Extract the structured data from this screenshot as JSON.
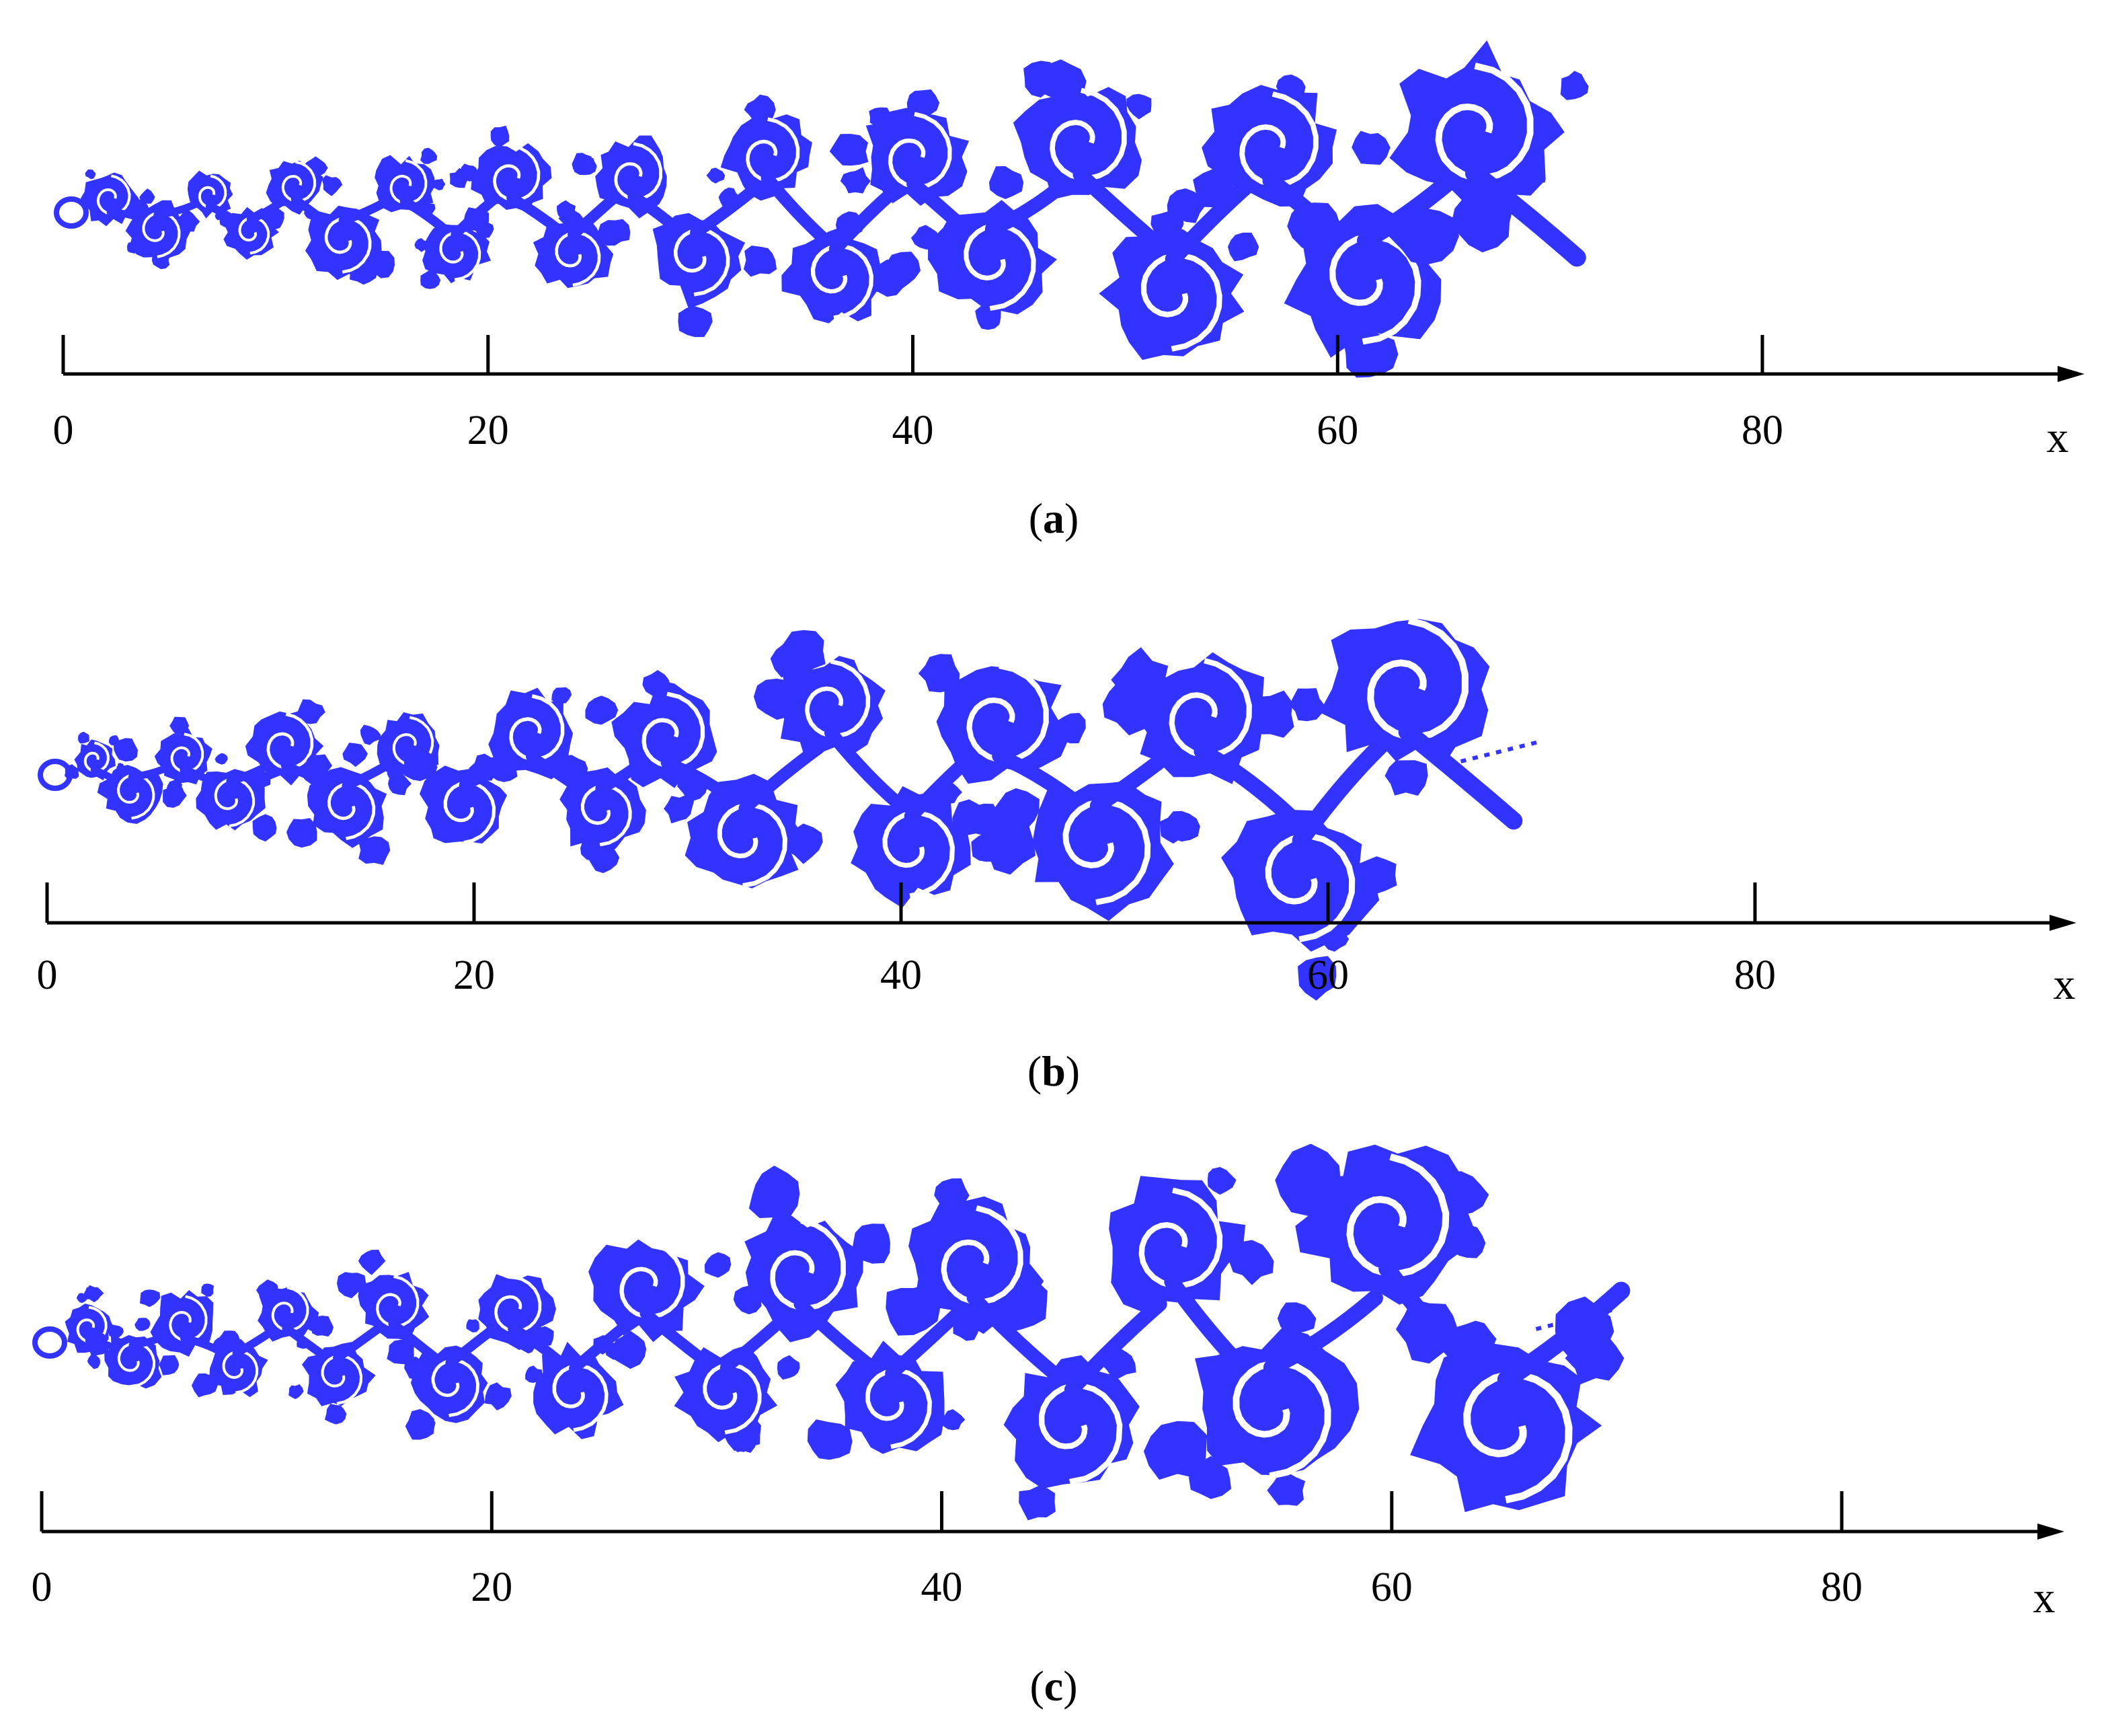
{
  "figure": {
    "dye_color": "#3333ff",
    "axis_color": "#000000",
    "x_axis_variable": "x",
    "panels": [
      {
        "id": "a",
        "caption_open": "(",
        "caption_letter": "a",
        "caption_close": ")",
        "ticks": [
          {
            "value": 0,
            "label": "0"
          },
          {
            "value": 20,
            "label": "20"
          },
          {
            "value": 40,
            "label": "40"
          },
          {
            "value": 60,
            "label": "60"
          },
          {
            "value": 80,
            "label": "80"
          }
        ],
        "wake_extent_x": [
          0,
          70
        ]
      },
      {
        "id": "b",
        "caption_open": "(",
        "caption_letter": "b",
        "caption_close": ")",
        "ticks": [
          {
            "value": 0,
            "label": "0"
          },
          {
            "value": 20,
            "label": "20"
          },
          {
            "value": 40,
            "label": "40"
          },
          {
            "value": 60,
            "label": "60"
          },
          {
            "value": 80,
            "label": "80"
          }
        ],
        "wake_extent_x": [
          0,
          70
        ]
      },
      {
        "id": "c",
        "caption_open": "(",
        "caption_letter": "c",
        "caption_close": ")",
        "ticks": [
          {
            "value": 0,
            "label": "0"
          },
          {
            "value": 20,
            "label": "20"
          },
          {
            "value": 40,
            "label": "40"
          },
          {
            "value": 60,
            "label": "60"
          },
          {
            "value": 80,
            "label": "80"
          }
        ],
        "wake_extent_x": [
          0,
          70
        ]
      }
    ]
  }
}
